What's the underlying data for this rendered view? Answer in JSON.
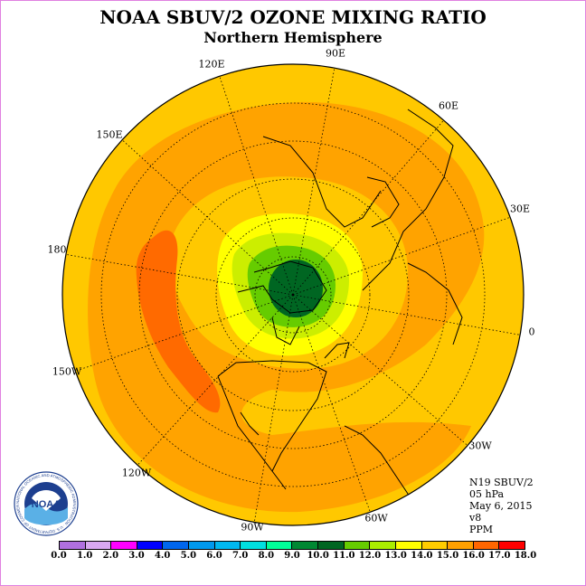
{
  "title": "NOAA SBUV/2 OZONE MIXING RATIO",
  "subtitle": "Northern Hemisphere",
  "longitude_labels": [
    "120E",
    "90E",
    "60E",
    "150E",
    "30E",
    "180",
    "0",
    "150W",
    "30W",
    "120W",
    "60W",
    "90W"
  ],
  "info": {
    "satellite": "N19 SBUV/2",
    "pressure": "05 hPa",
    "date": "May 6, 2015",
    "version": "v8",
    "units": "PPM"
  },
  "logo": {
    "text": "NOAA",
    "ring_text": "NATIONAL OCEANIC AND ATMOSPHERIC ADMINISTRATION · U.S. DEPARTMENT OF COMMERCE"
  },
  "colorbar": {
    "ticks": [
      "0.0",
      "1.0",
      "2.0",
      "3.0",
      "4.0",
      "5.0",
      "6.0",
      "7.0",
      "8.0",
      "9.0",
      "10.0",
      "11.0",
      "12.0",
      "13.0",
      "14.0",
      "15.0",
      "16.0",
      "17.0",
      "18.0"
    ],
    "colors": [
      "#b070e0",
      "#d8a8f0",
      "#ff00ff",
      "#0000ff",
      "#0066ee",
      "#0099ee",
      "#00b8f0",
      "#00e0e0",
      "#00ff99",
      "#008833",
      "#006622",
      "#66cc00",
      "#aaee00",
      "#ffff00",
      "#ffcc00",
      "#ffa000",
      "#ff6600",
      "#ff0000",
      "#8b4a2b"
    ]
  }
}
